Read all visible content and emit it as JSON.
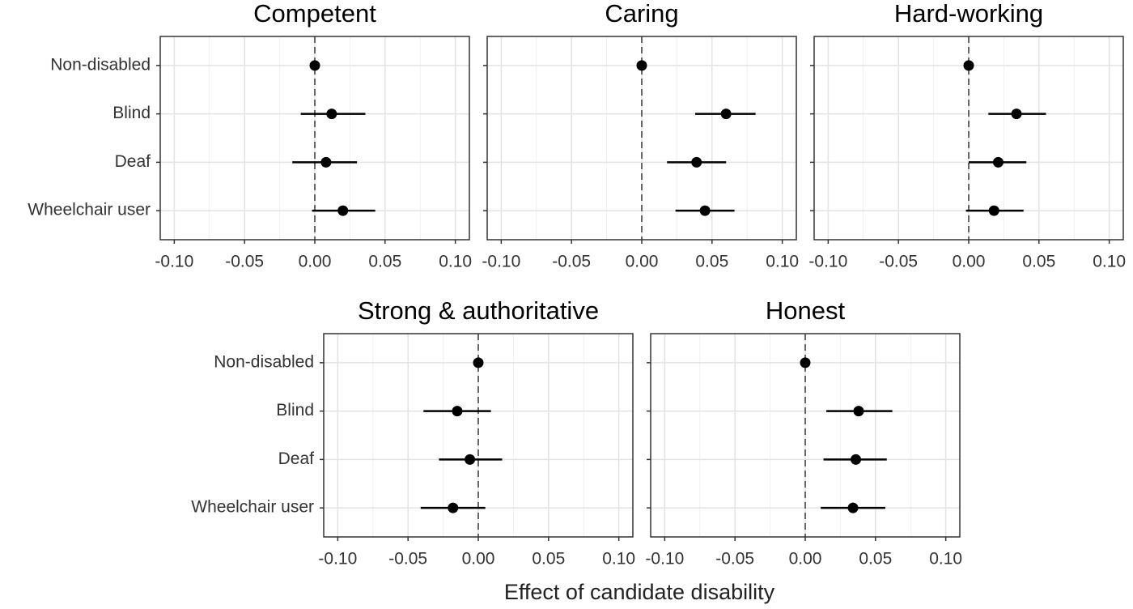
{
  "xlabel": "Effect of candidate disability",
  "chart_data": [
    {
      "type": "dot-errorbar",
      "title": "Competent",
      "categories": [
        "Non-disabled",
        "Blind",
        "Deaf",
        "Wheelchair user"
      ],
      "values": [
        0,
        0.012,
        0.008,
        0.02
      ],
      "lower": [
        null,
        -0.01,
        -0.016,
        -0.002
      ],
      "upper": [
        null,
        0.036,
        0.03,
        0.043
      ],
      "color": "#000000",
      "reference_line": 0,
      "grid": true,
      "xlim": [
        -0.11,
        0.11
      ],
      "xticks": [
        {
          "value": -0.1,
          "label": "-0.10"
        },
        {
          "value": -0.05,
          "label": "-0.05"
        },
        {
          "value": 0,
          "label": "0.00"
        },
        {
          "value": 0.05,
          "label": "0.05"
        },
        {
          "value": 0.1,
          "label": "0.10"
        }
      ]
    },
    {
      "type": "dot-errorbar",
      "title": "Caring",
      "categories": [
        null,
        null,
        null,
        null
      ],
      "values": [
        0,
        0.06,
        0.039,
        0.045
      ],
      "lower": [
        null,
        0.038,
        0.018,
        0.024
      ],
      "upper": [
        null,
        0.081,
        0.06,
        0.066
      ],
      "color": "#000000",
      "reference_line": 0,
      "grid": true,
      "xlim": [
        -0.11,
        0.11
      ],
      "xticks": [
        {
          "value": -0.1,
          "label": "-0.10"
        },
        {
          "value": -0.05,
          "label": "-0.05"
        },
        {
          "value": 0,
          "label": "0.00"
        },
        {
          "value": 0.05,
          "label": "0.05"
        },
        {
          "value": 0.1,
          "label": "0.10"
        }
      ]
    },
    {
      "type": "dot-errorbar",
      "title": "Hard-working",
      "categories": [
        null,
        null,
        null,
        null
      ],
      "values": [
        0,
        0.034,
        0.021,
        0.018
      ],
      "lower": [
        null,
        0.014,
        0.0,
        -0.002
      ],
      "upper": [
        null,
        0.055,
        0.041,
        0.039
      ],
      "color": "#000000",
      "reference_line": 0,
      "grid": true,
      "xlim": [
        -0.11,
        0.11
      ],
      "xticks": [
        {
          "value": -0.1,
          "label": "-0.10"
        },
        {
          "value": -0.05,
          "label": "-0.05"
        },
        {
          "value": 0,
          "label": "0.00"
        },
        {
          "value": 0.05,
          "label": "0.05"
        },
        {
          "value": 0.1,
          "label": "0.10"
        }
      ]
    },
    {
      "type": "dot-errorbar",
      "title": "Strong & authoritative",
      "categories": [
        "Non-disabled",
        "Blind",
        "Deaf",
        "Wheelchair user"
      ],
      "values": [
        0,
        -0.015,
        -0.006,
        -0.018
      ],
      "lower": [
        null,
        -0.039,
        -0.028,
        -0.041
      ],
      "upper": [
        null,
        0.009,
        0.017,
        0.005
      ],
      "color": "#000000",
      "reference_line": 0,
      "grid": true,
      "xlim": [
        -0.11,
        0.11
      ],
      "xticks": [
        {
          "value": -0.1,
          "label": "-0.10"
        },
        {
          "value": -0.05,
          "label": "-0.05"
        },
        {
          "value": 0,
          "label": "0.00"
        },
        {
          "value": 0.05,
          "label": "0.05"
        },
        {
          "value": 0.1,
          "label": "0.10"
        }
      ]
    },
    {
      "type": "dot-errorbar",
      "title": "Honest",
      "categories": [
        null,
        null,
        null,
        null
      ],
      "values": [
        0,
        0.038,
        0.036,
        0.034
      ],
      "lower": [
        null,
        0.015,
        0.013,
        0.011
      ],
      "upper": [
        null,
        0.062,
        0.058,
        0.057
      ],
      "color": "#000000",
      "reference_line": 0,
      "grid": true,
      "xlim": [
        -0.11,
        0.11
      ],
      "xticks": [
        {
          "value": -0.1,
          "label": "-0.10"
        },
        {
          "value": -0.05,
          "label": "-0.05"
        },
        {
          "value": 0,
          "label": "0.00"
        },
        {
          "value": 0.05,
          "label": "0.05"
        },
        {
          "value": 0.1,
          "label": "0.10"
        }
      ]
    }
  ]
}
